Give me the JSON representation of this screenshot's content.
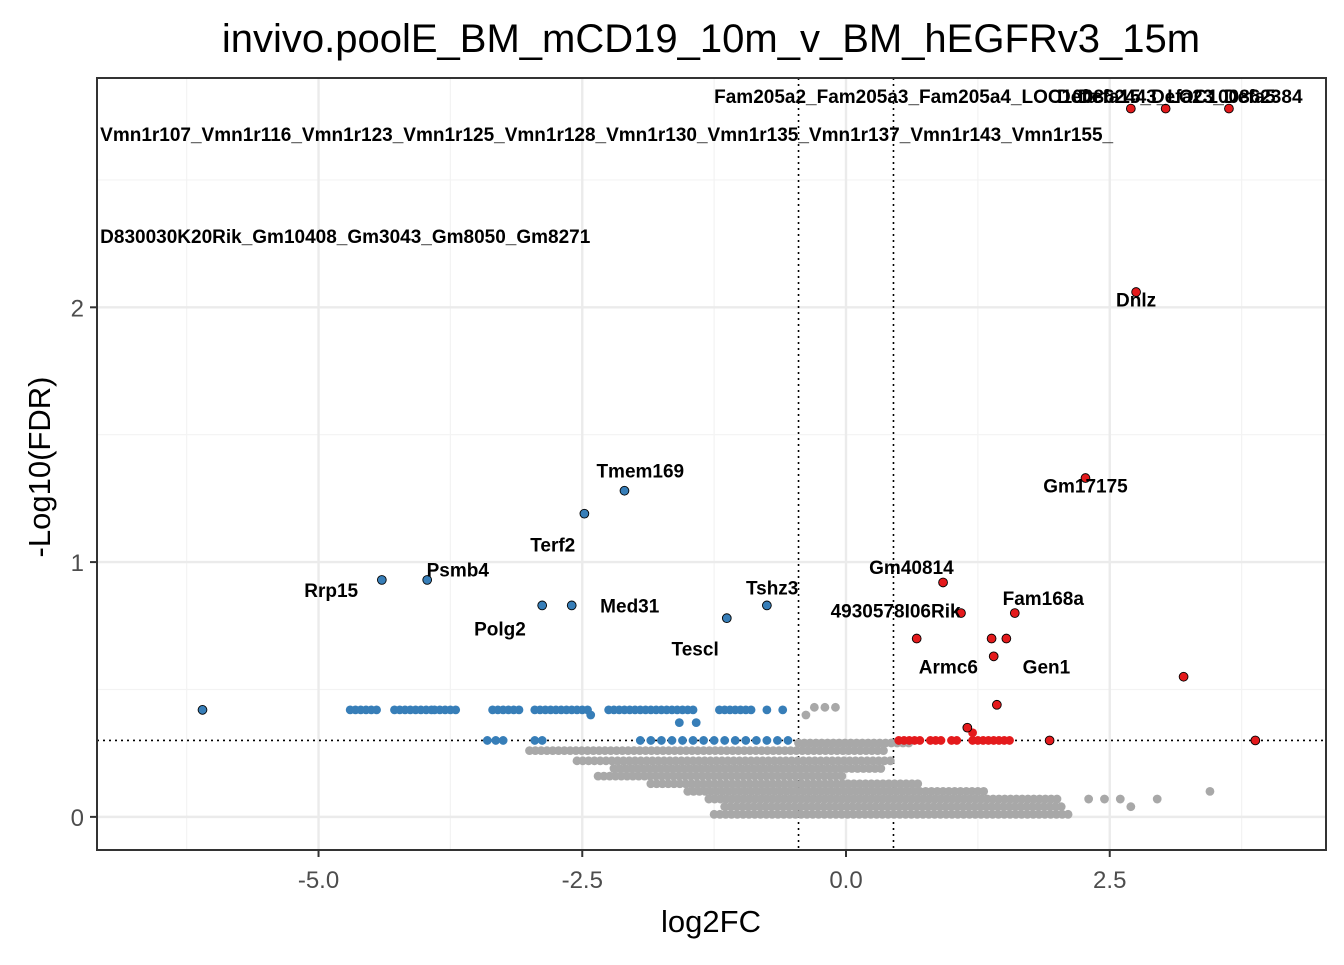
{
  "chart_data": {
    "type": "scatter",
    "title": "invivo.poolE_BM_mCD19_10m_v_BM_hEGFRv3_15m",
    "xlabel": "log2FC",
    "ylabel": "-Log10(FDR)",
    "xlim": [
      -7.1,
      4.55
    ],
    "ylim": [
      -0.13,
      2.9
    ],
    "x_ticks": [
      -5.0,
      -2.5,
      0.0,
      2.5
    ],
    "x_tick_labels": [
      "-5.0",
      "-2.5",
      "0.0",
      "2.5"
    ],
    "y_ticks": [
      0,
      1,
      2
    ],
    "y_tick_labels": [
      "0",
      "1",
      "2"
    ],
    "x_minor_ticks": [
      -6.25,
      -3.75,
      -1.25,
      1.25,
      3.75
    ],
    "y_minor_ticks": [
      0.5,
      1.5,
      2.5
    ],
    "thresholds": {
      "x": [
        -0.45,
        0.45
      ],
      "y": 0.3
    },
    "grid": true,
    "legend": "none",
    "colors": {
      "up": "#e41a1c",
      "down": "#377eb8",
      "ns": "#a8a8a8",
      "grid": "#ebebeb",
      "panel_border": "#333333",
      "text": "#000000",
      "tick_text": "#4d4d4d"
    },
    "down_points": [
      {
        "x": -6.1,
        "y": 0.42
      },
      {
        "x": -4.4,
        "y": 0.93
      },
      {
        "x": -3.97,
        "y": 0.93
      },
      {
        "x": -2.88,
        "y": 0.83
      },
      {
        "x": -2.6,
        "y": 0.83
      },
      {
        "x": -2.48,
        "y": 1.19
      },
      {
        "x": -2.1,
        "y": 1.28
      },
      {
        "x": -1.13,
        "y": 0.78
      },
      {
        "x": -0.75,
        "y": 0.83
      }
    ],
    "down_cluster": [
      {
        "x": -4.7,
        "y": 0.42
      },
      {
        "x": -4.65,
        "y": 0.42
      },
      {
        "x": -4.6,
        "y": 0.42
      },
      {
        "x": -4.55,
        "y": 0.42
      },
      {
        "x": -4.5,
        "y": 0.42
      },
      {
        "x": -4.45,
        "y": 0.42
      },
      {
        "x": -4.28,
        "y": 0.42
      },
      {
        "x": -4.23,
        "y": 0.42
      },
      {
        "x": -4.18,
        "y": 0.42
      },
      {
        "x": -4.13,
        "y": 0.42
      },
      {
        "x": -4.08,
        "y": 0.42
      },
      {
        "x": -4.03,
        "y": 0.42
      },
      {
        "x": -3.98,
        "y": 0.42
      },
      {
        "x": -3.93,
        "y": 0.42
      },
      {
        "x": -3.9,
        "y": 0.42
      },
      {
        "x": -3.85,
        "y": 0.42
      },
      {
        "x": -3.8,
        "y": 0.42
      },
      {
        "x": -3.75,
        "y": 0.42
      },
      {
        "x": -3.7,
        "y": 0.42
      },
      {
        "x": -3.35,
        "y": 0.42
      },
      {
        "x": -3.3,
        "y": 0.42
      },
      {
        "x": -3.25,
        "y": 0.42
      },
      {
        "x": -3.2,
        "y": 0.42
      },
      {
        "x": -3.15,
        "y": 0.42
      },
      {
        "x": -3.1,
        "y": 0.42
      },
      {
        "x": -2.95,
        "y": 0.42
      },
      {
        "x": -2.9,
        "y": 0.42
      },
      {
        "x": -2.85,
        "y": 0.42
      },
      {
        "x": -2.8,
        "y": 0.42
      },
      {
        "x": -2.75,
        "y": 0.42
      },
      {
        "x": -2.7,
        "y": 0.42
      },
      {
        "x": -2.65,
        "y": 0.42
      },
      {
        "x": -2.6,
        "y": 0.42
      },
      {
        "x": -2.55,
        "y": 0.42
      },
      {
        "x": -2.5,
        "y": 0.42
      },
      {
        "x": -2.45,
        "y": 0.42
      },
      {
        "x": -2.42,
        "y": 0.4
      },
      {
        "x": -2.25,
        "y": 0.42
      },
      {
        "x": -2.2,
        "y": 0.42
      },
      {
        "x": -2.15,
        "y": 0.42
      },
      {
        "x": -2.1,
        "y": 0.42
      },
      {
        "x": -2.05,
        "y": 0.42
      },
      {
        "x": -2.0,
        "y": 0.42
      },
      {
        "x": -1.95,
        "y": 0.42
      },
      {
        "x": -1.9,
        "y": 0.42
      },
      {
        "x": -1.85,
        "y": 0.42
      },
      {
        "x": -1.8,
        "y": 0.42
      },
      {
        "x": -1.75,
        "y": 0.42
      },
      {
        "x": -1.7,
        "y": 0.42
      },
      {
        "x": -1.65,
        "y": 0.42
      },
      {
        "x": -1.6,
        "y": 0.42
      },
      {
        "x": -1.55,
        "y": 0.42
      },
      {
        "x": -1.5,
        "y": 0.42
      },
      {
        "x": -1.45,
        "y": 0.42
      },
      {
        "x": -1.58,
        "y": 0.37
      },
      {
        "x": -1.42,
        "y": 0.37
      },
      {
        "x": -1.2,
        "y": 0.42
      },
      {
        "x": -1.15,
        "y": 0.42
      },
      {
        "x": -1.1,
        "y": 0.42
      },
      {
        "x": -1.05,
        "y": 0.42
      },
      {
        "x": -1.0,
        "y": 0.42
      },
      {
        "x": -0.95,
        "y": 0.42
      },
      {
        "x": -0.9,
        "y": 0.42
      },
      {
        "x": -0.75,
        "y": 0.42
      },
      {
        "x": -0.6,
        "y": 0.42
      },
      {
        "x": -3.4,
        "y": 0.3
      },
      {
        "x": -3.32,
        "y": 0.3
      },
      {
        "x": -3.25,
        "y": 0.3
      },
      {
        "x": -2.95,
        "y": 0.3
      },
      {
        "x": -2.88,
        "y": 0.3
      },
      {
        "x": -1.95,
        "y": 0.3
      },
      {
        "x": -1.85,
        "y": 0.3
      },
      {
        "x": -1.75,
        "y": 0.3
      },
      {
        "x": -1.65,
        "y": 0.3
      },
      {
        "x": -1.55,
        "y": 0.3
      },
      {
        "x": -1.45,
        "y": 0.3
      },
      {
        "x": -1.35,
        "y": 0.3
      },
      {
        "x": -1.25,
        "y": 0.3
      },
      {
        "x": -1.15,
        "y": 0.3
      },
      {
        "x": -1.05,
        "y": 0.3
      },
      {
        "x": -0.95,
        "y": 0.3
      },
      {
        "x": -0.85,
        "y": 0.3
      },
      {
        "x": -0.75,
        "y": 0.3
      },
      {
        "x": -0.65,
        "y": 0.3
      },
      {
        "x": -0.55,
        "y": 0.3
      }
    ],
    "up_points": [
      {
        "x": 2.7,
        "y": 2.78
      },
      {
        "x": 3.03,
        "y": 2.78
      },
      {
        "x": 3.63,
        "y": 2.78
      },
      {
        "x": 2.75,
        "y": 2.06
      },
      {
        "x": 2.27,
        "y": 1.33
      },
      {
        "x": 0.92,
        "y": 0.92
      },
      {
        "x": 1.09,
        "y": 0.8
      },
      {
        "x": 1.6,
        "y": 0.8
      },
      {
        "x": 0.67,
        "y": 0.7
      },
      {
        "x": 1.38,
        "y": 0.7
      },
      {
        "x": 1.52,
        "y": 0.7
      },
      {
        "x": 1.4,
        "y": 0.63
      },
      {
        "x": 3.2,
        "y": 0.55
      },
      {
        "x": 1.43,
        "y": 0.44
      },
      {
        "x": 1.15,
        "y": 0.35
      },
      {
        "x": 3.88,
        "y": 0.3
      },
      {
        "x": 1.93,
        "y": 0.3
      }
    ],
    "up_cluster": [
      {
        "x": 0.5,
        "y": 0.3
      },
      {
        "x": 0.55,
        "y": 0.3
      },
      {
        "x": 0.6,
        "y": 0.3
      },
      {
        "x": 0.65,
        "y": 0.3
      },
      {
        "x": 0.7,
        "y": 0.3
      },
      {
        "x": 0.8,
        "y": 0.3
      },
      {
        "x": 0.85,
        "y": 0.3
      },
      {
        "x": 0.9,
        "y": 0.3
      },
      {
        "x": 1.0,
        "y": 0.3
      },
      {
        "x": 1.05,
        "y": 0.3
      },
      {
        "x": 1.2,
        "y": 0.3
      },
      {
        "x": 1.25,
        "y": 0.3
      },
      {
        "x": 1.3,
        "y": 0.3
      },
      {
        "x": 1.35,
        "y": 0.3
      },
      {
        "x": 1.4,
        "y": 0.3
      },
      {
        "x": 1.45,
        "y": 0.3
      },
      {
        "x": 1.5,
        "y": 0.3
      },
      {
        "x": 1.55,
        "y": 0.3
      },
      {
        "x": 1.2,
        "y": 0.33
      }
    ],
    "ns_region_note": "",
    "ns_points": [
      {
        "x": 2.3,
        "y": 0.07
      },
      {
        "x": 2.45,
        "y": 0.07
      },
      {
        "x": 2.6,
        "y": 0.07
      },
      {
        "x": 2.95,
        "y": 0.07
      },
      {
        "x": 3.45,
        "y": 0.1
      },
      {
        "x": 2.7,
        "y": 0.04
      },
      {
        "x": -0.3,
        "y": 0.43
      },
      {
        "x": -0.2,
        "y": 0.43
      },
      {
        "x": -0.1,
        "y": 0.43
      },
      {
        "x": -0.38,
        "y": 0.4
      }
    ],
    "ns_bands": [
      {
        "y": 0.26,
        "x_from": -3.0,
        "x_to": 0.4
      },
      {
        "y": 0.22,
        "x_from": -2.55,
        "x_to": 0.45
      },
      {
        "y": 0.19,
        "x_from": -2.2,
        "x_to": 0.35
      },
      {
        "y": 0.16,
        "x_from": -2.35,
        "x_to": 0.0
      },
      {
        "y": 0.13,
        "x_from": -1.85,
        "x_to": 0.7
      },
      {
        "y": 0.1,
        "x_from": -1.5,
        "x_to": 1.35
      },
      {
        "y": 0.07,
        "x_from": -1.3,
        "x_to": 2.0
      },
      {
        "y": 0.04,
        "x_from": -1.15,
        "x_to": 2.05
      },
      {
        "y": 0.01,
        "x_from": -1.25,
        "x_to": 2.15
      },
      {
        "y": 0.29,
        "x_from": -0.45,
        "x_to": 0.6
      }
    ],
    "annotations": [
      {
        "text": "Fam205a2_Fam205a3_Fam205a4_LOC100862443_LOC100862384",
        "x": -1.25,
        "y": 2.83,
        "anchor": "start"
      },
      {
        "text": "Defa",
        "x": 2.0,
        "y": 2.83,
        "anchor": "start"
      },
      {
        "text": "Defa15_Defa23_Defa5",
        "x": 2.2,
        "y": 2.83,
        "anchor": "start"
      },
      {
        "text": "Vmn1r107_Vmn1r116_Vmn1r123_Vmn1r125_Vmn1r128_Vmn1r130_Vmn1r135_Vmn1r137_Vmn1r143_Vmn1r155_",
        "x": -7.07,
        "y": 2.68,
        "anchor": "start"
      },
      {
        "text": "D830030K20Rik_Gm10408_Gm3043_Gm8050_Gm8271",
        "x": -7.07,
        "y": 2.28,
        "anchor": "start"
      },
      {
        "text": "Dnlz",
        "x": 2.75,
        "y": 2.03,
        "anchor": "middle"
      },
      {
        "text": "Gm17175",
        "x": 2.27,
        "y": 1.3,
        "anchor": "middle"
      },
      {
        "text": "Tmem169",
        "x": -1.95,
        "y": 1.36,
        "anchor": "middle"
      },
      {
        "text": "Terf2",
        "x": -2.78,
        "y": 1.07,
        "anchor": "middle"
      },
      {
        "text": "Psmb4",
        "x": -3.68,
        "y": 0.97,
        "anchor": "middle"
      },
      {
        "text": "Rrp15",
        "x": -4.88,
        "y": 0.89,
        "anchor": "middle"
      },
      {
        "text": "Med31",
        "x": -2.05,
        "y": 0.83,
        "anchor": "middle"
      },
      {
        "text": "Polg2",
        "x": -3.28,
        "y": 0.74,
        "anchor": "middle"
      },
      {
        "text": "Tshz3",
        "x": -0.7,
        "y": 0.9,
        "anchor": "middle"
      },
      {
        "text": "Tescl",
        "x": -1.43,
        "y": 0.66,
        "anchor": "middle"
      },
      {
        "text": "Gm40814",
        "x": 0.62,
        "y": 0.98,
        "anchor": "middle"
      },
      {
        "text": "4930578I06Rik",
        "x": 0.47,
        "y": 0.81,
        "anchor": "middle"
      },
      {
        "text": "Fam168a",
        "x": 1.87,
        "y": 0.86,
        "anchor": "middle"
      },
      {
        "text": "Armc6",
        "x": 0.97,
        "y": 0.59,
        "anchor": "middle"
      },
      {
        "text": "Gen1",
        "x": 1.9,
        "y": 0.59,
        "anchor": "middle"
      }
    ]
  }
}
